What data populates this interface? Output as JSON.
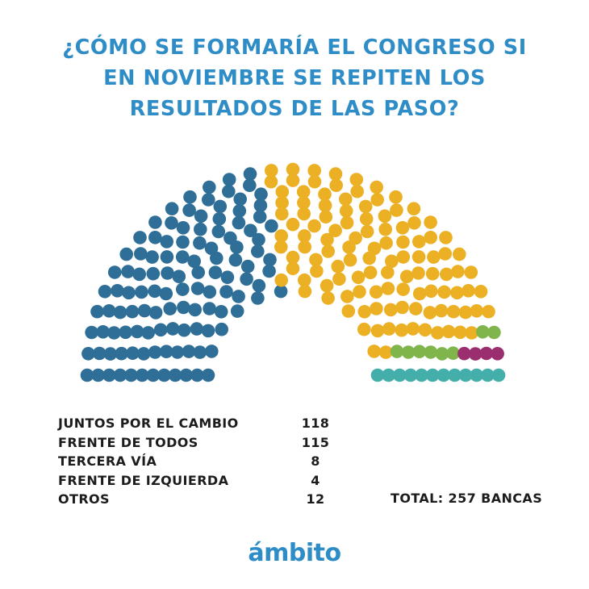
{
  "title_lines": [
    "¿CÓMO SE FORMARÍA EL CONGRESO SI",
    "EN NOVIEMBRE SE REPITEN LOS",
    "RESULTADOS DE LAS PASO?"
  ],
  "chart_data": {
    "type": "parliament",
    "total_seats": 257,
    "series": [
      {
        "name": "JUNTOS POR EL CAMBIO",
        "value": 118,
        "value_label": "118",
        "color": "#2f6f97"
      },
      {
        "name": "FRENTE DE TODOS",
        "value": 115,
        "value_label": "115",
        "color": "#ebb024"
      },
      {
        "name": "TERCERA VÍA",
        "value": 8,
        "value_label": "8",
        "color": "#7fb54a"
      },
      {
        "name": "FRENTE DE IZQUIERDA",
        "value": 4,
        "value_label": "4",
        "color": "#9b2e6e"
      },
      {
        "name": "OTROS",
        "value": 12,
        "value_label": "12",
        "color": "#44aeab"
      }
    ]
  },
  "total_label": "TOTAL: 257 BANCAS",
  "brand": "ámbito"
}
